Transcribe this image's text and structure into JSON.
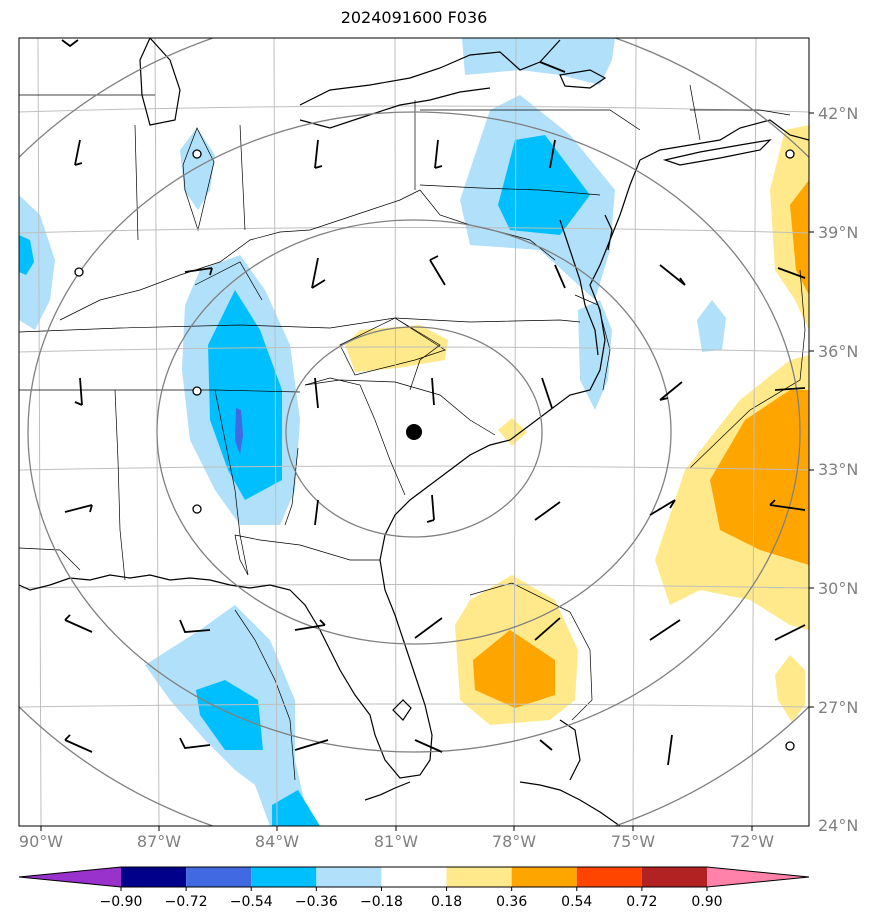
{
  "title": "2024091600 F036",
  "lat_labels": [
    "42°N",
    "39°N",
    "36°N",
    "33°N",
    "30°N",
    "27°N",
    "24°N"
  ],
  "lon_labels": [
    "90°W",
    "87°W",
    "84°W",
    "81°W",
    "78°W",
    "75°W",
    "72°W"
  ],
  "colorbar": {
    "labels": [
      "−0.90",
      "−0.72",
      "−0.54",
      "−0.36",
      "−0.18",
      "0.18",
      "0.36",
      "0.54",
      "0.72",
      "0.90"
    ],
    "colors": [
      "#9932cc",
      "#00008b",
      "#4169e1",
      "#00bfff",
      "#b0e0fa",
      "#ffffff",
      "#ffe98a",
      "#ffa500",
      "#ff4500",
      "#b22222",
      "#ff82ab"
    ]
  },
  "colors": {
    "neg_light": "#b0e0fa",
    "neg_medium": "#00bfff",
    "neg_strong": "#4169e1",
    "pos_light": "#ffe98a",
    "pos_medium": "#ffa500"
  },
  "marker": "center-point",
  "range_rings": 4
}
